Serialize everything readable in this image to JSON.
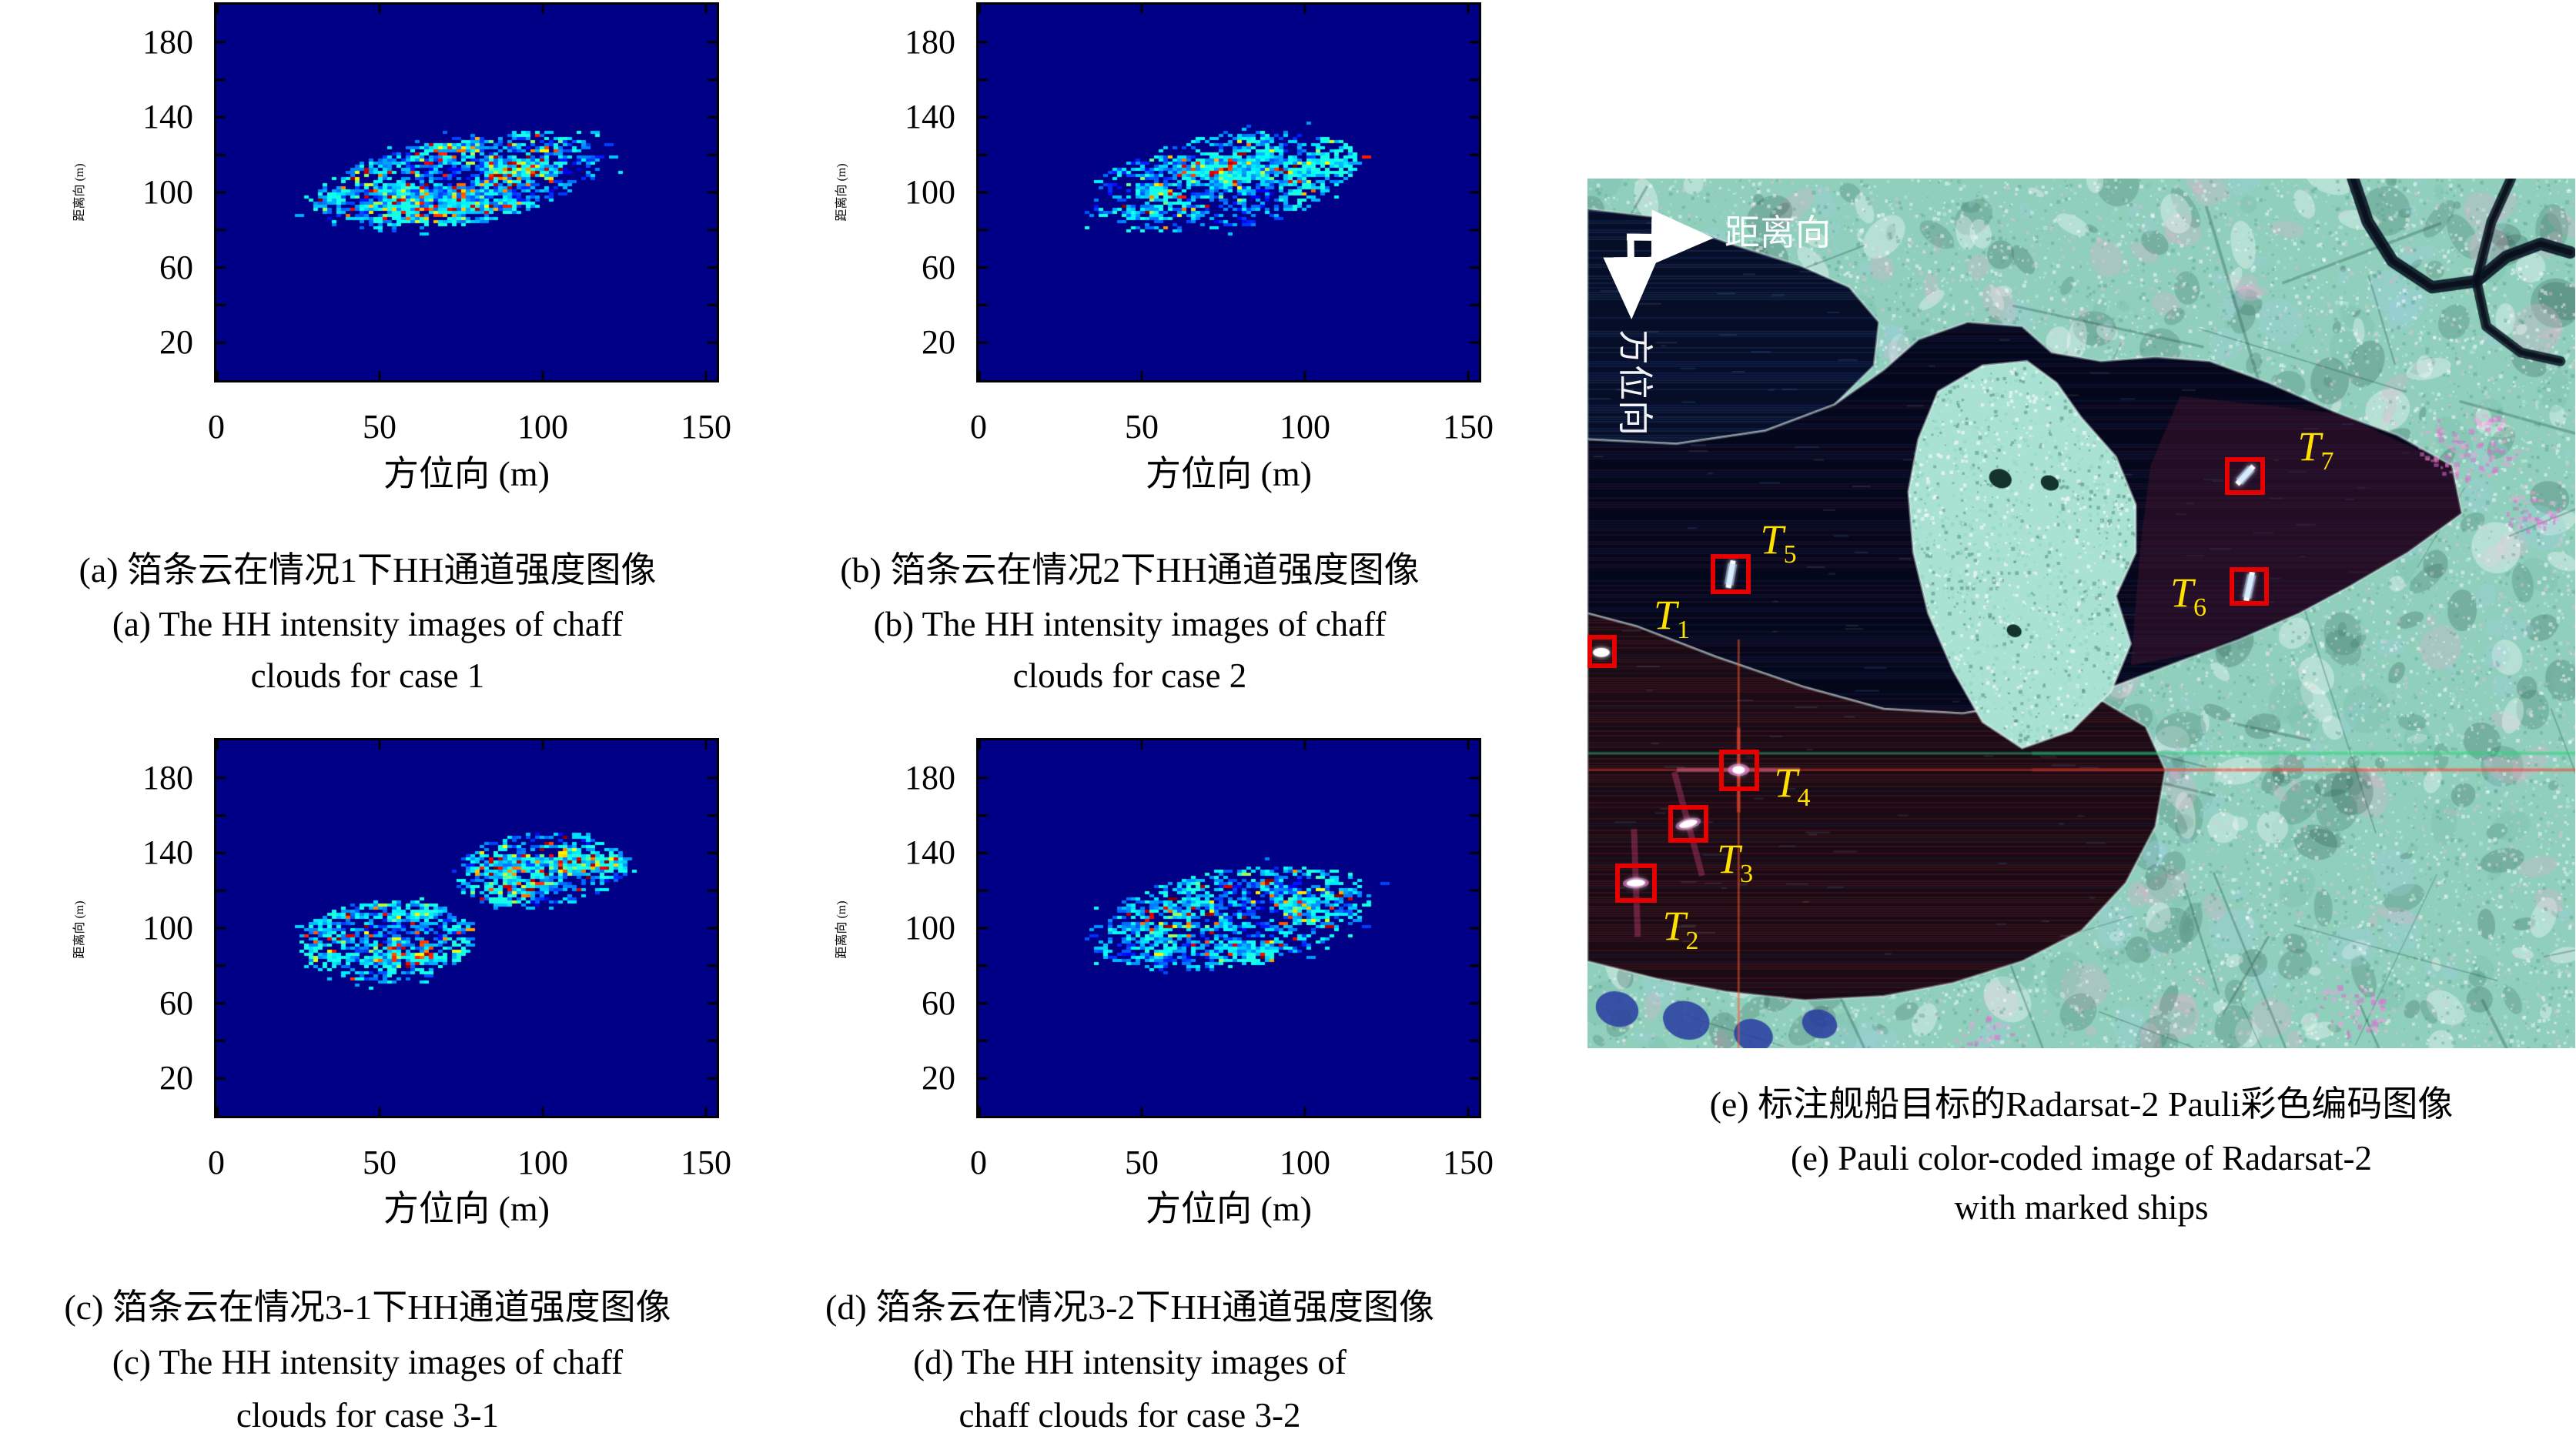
{
  "panels": {
    "a": {
      "caption_zh": "(a) 箔条云在情况1下HH通道强度图像",
      "caption_en1": "(a) The HH intensity images of chaff",
      "caption_en2": "clouds for case 1",
      "xlabel": "方位向 (m)",
      "ylabel": "距离向 (m)"
    },
    "b": {
      "caption_zh": "(b) 箔条云在情况2下HH通道强度图像",
      "caption_en1": "(b) The HH intensity images of chaff",
      "caption_en2": "clouds for case 2",
      "xlabel": "方位向 (m)",
      "ylabel": "距离向 (m)"
    },
    "c": {
      "caption_zh": "(c) 箔条云在情况3-1下HH通道强度图像",
      "caption_en1": "(c) The HH intensity images of chaff",
      "caption_en2": "clouds for case 3-1",
      "xlabel": "方位向 (m)",
      "ylabel": "距离向 (m)"
    },
    "d": {
      "caption_zh": "(d) 箔条云在情况3-2下HH通道强度图像",
      "caption_en1": "(d) The HH intensity images of",
      "caption_en2": "chaff clouds for case 3-2",
      "xlabel": "方位向 (m)",
      "ylabel": "距离向 (m)"
    },
    "e": {
      "caption_zh": "(e) 标注舰船目标的Radarsat-2 Pauli彩色编码图像",
      "caption_en1": "(e) Pauli color-coded image of Radarsat-2",
      "caption_en2": "with marked ships",
      "range_arrow_label": "距离向",
      "azimuth_arrow_label": "方位向"
    }
  },
  "colors": {
    "box": "#e80000",
    "target_label": "#ffe100",
    "heatmap_background": "#000086",
    "axis": "#000000",
    "arrow": "#ffffff"
  },
  "chart_data": [
    {
      "id": "a",
      "type": "heatmap",
      "xlabel": "方位向 (m)",
      "ylabel": "距离向 (m)",
      "xticks": [
        0,
        50,
        100,
        150
      ],
      "yticks": [
        20,
        60,
        100,
        140,
        180
      ],
      "xlim": [
        0,
        153.3
      ],
      "ylim": [
        0,
        200
      ],
      "colormap": "jet",
      "grid": false,
      "background": "#000086",
      "seed": 11,
      "clusters": [
        {
          "cx": 74,
          "cy": 106,
          "rx": 46,
          "ry": 23,
          "angle": 20,
          "density": 0.92,
          "hot": 0.3
        }
      ]
    },
    {
      "id": "b",
      "type": "heatmap",
      "xlabel": "方位向 (m)",
      "ylabel": "距离向 (m)",
      "xticks": [
        0,
        50,
        100,
        150
      ],
      "yticks": [
        20,
        60,
        100,
        140,
        180
      ],
      "xlim": [
        0,
        153.3
      ],
      "ylim": [
        0,
        200
      ],
      "colormap": "jet",
      "grid": false,
      "background": "#000086",
      "seed": 22,
      "clusters": [
        {
          "cx": 75,
          "cy": 106,
          "rx": 43,
          "ry": 24,
          "angle": 21,
          "density": 0.8,
          "hot": 0.14
        }
      ]
    },
    {
      "id": "c",
      "type": "heatmap",
      "xlabel": "方位向 (m)",
      "ylabel": "距离向 (m)",
      "xticks": [
        0,
        50,
        100,
        150
      ],
      "yticks": [
        20,
        60,
        100,
        140,
        180
      ],
      "xlim": [
        0,
        153.3
      ],
      "ylim": [
        0,
        200
      ],
      "colormap": "jet",
      "grid": false,
      "background": "#000086",
      "seed": 33,
      "clusters": [
        {
          "cx": 52,
          "cy": 93,
          "rx": 27,
          "ry": 22,
          "angle": 14,
          "density": 0.92,
          "hot": 0.26
        },
        {
          "cx": 99,
          "cy": 131,
          "rx": 27,
          "ry": 20,
          "angle": 14,
          "density": 0.92,
          "hot": 0.26
        }
      ]
    },
    {
      "id": "d",
      "type": "heatmap",
      "xlabel": "方位向 (m)",
      "ylabel": "距离向 (m)",
      "xticks": [
        0,
        50,
        100,
        150
      ],
      "yticks": [
        20,
        60,
        100,
        140,
        180
      ],
      "xlim": [
        0,
        153.3
      ],
      "ylim": [
        0,
        200
      ],
      "colormap": "jet",
      "grid": false,
      "background": "#000086",
      "seed": 44,
      "clusters": [
        {
          "cx": 77,
          "cy": 105,
          "rx": 45,
          "ry": 25,
          "angle": 20,
          "density": 0.82,
          "hot": 0.2
        }
      ]
    },
    {
      "id": "e",
      "type": "sar_image",
      "seed": 7,
      "arrows": {
        "corner": [
          0.04,
          0.067
        ],
        "range_tip": [
          0.125,
          0.069
        ],
        "azimuth_tip": [
          0.045,
          0.159
        ]
      },
      "targets": [
        {
          "label": "T",
          "sub": "1",
          "box": [
            0.0,
            0.525,
            0.03,
            0.038
          ],
          "label_pos": [
            0.067,
            0.478
          ]
        },
        {
          "label": "T",
          "sub": "2",
          "box": [
            0.028,
            0.788,
            0.042,
            0.045
          ],
          "label_pos": [
            0.076,
            0.835
          ]
        },
        {
          "label": "T",
          "sub": "3",
          "box": [
            0.082,
            0.72,
            0.04,
            0.044
          ],
          "label_pos": [
            0.131,
            0.758
          ]
        },
        {
          "label": "T",
          "sub": "4",
          "box": [
            0.133,
            0.657,
            0.041,
            0.047
          ],
          "label_pos": [
            0.189,
            0.671
          ]
        },
        {
          "label": "T",
          "sub": "5",
          "box": [
            0.125,
            0.432,
            0.04,
            0.046
          ],
          "label_pos": [
            0.175,
            0.391
          ]
        },
        {
          "label": "T",
          "sub": "6",
          "box": [
            0.65,
            0.447,
            0.04,
            0.044
          ],
          "label_pos": [
            0.59,
            0.452
          ]
        },
        {
          "label": "T",
          "sub": "7",
          "box": [
            0.645,
            0.32,
            0.041,
            0.044
          ],
          "label_pos": [
            0.719,
            0.284
          ]
        }
      ],
      "ships": [
        {
          "x": 0.014,
          "y": 0.545,
          "len": 0.01,
          "ang": 0,
          "type": "blob"
        },
        {
          "x": 0.049,
          "y": 0.81,
          "len": 0.026,
          "ang": 88,
          "type": "flareblob"
        },
        {
          "x": 0.102,
          "y": 0.742,
          "len": 0.024,
          "ang": 75,
          "type": "flareblob"
        },
        {
          "x": 0.153,
          "y": 0.68,
          "len": 0.016,
          "ang": 0,
          "type": "crossflare"
        },
        {
          "x": 0.145,
          "y": 0.455,
          "len": 0.032,
          "ang": 10,
          "type": "dash"
        },
        {
          "x": 0.67,
          "y": 0.469,
          "len": 0.034,
          "ang": 12,
          "type": "dash"
        },
        {
          "x": 0.666,
          "y": 0.341,
          "len": 0.028,
          "ang": 42,
          "type": "dash"
        }
      ],
      "flares": [
        {
          "type": "h",
          "y": 0.661,
          "color": "43,216,124",
          "alpha": 0.45
        },
        {
          "type": "h",
          "y": 0.68,
          "color": "255,59,40",
          "alpha": 0.4
        },
        {
          "type": "v",
          "x": 0.153,
          "y0": 0.53,
          "y1": 1.0,
          "color": "255,90,38",
          "alpha": 0.5
        }
      ],
      "regions": [
        {
          "name": "upper_left_water",
          "fill": "#060d26",
          "streaks": [
            "rgba(30,60,140,0.30)",
            "rgba(8,16,52,0.45)",
            "rgba(80,140,200,0.15)"
          ],
          "pts": [
            [
              0,
              0.035
            ],
            [
              0.075,
              0.045
            ],
            [
              0.145,
              0.075
            ],
            [
              0.215,
              0.1
            ],
            [
              0.265,
              0.125
            ],
            [
              0.295,
              0.165
            ],
            [
              0.29,
              0.215
            ],
            [
              0.25,
              0.26
            ],
            [
              0.18,
              0.29
            ],
            [
              0.09,
              0.305
            ],
            [
              0,
              0.3
            ]
          ]
        },
        {
          "name": "main_bay_water",
          "fill": "#05071c",
          "streaks": [
            "rgba(24,36,90,0.28)",
            "rgba(4,6,24,0.50)",
            "rgba(130,50,90,0.14)"
          ],
          "pts": [
            [
              0,
              0.3
            ],
            [
              0.09,
              0.305
            ],
            [
              0.18,
              0.29
            ],
            [
              0.25,
              0.26
            ],
            [
              0.3,
              0.22
            ],
            [
              0.335,
              0.185
            ],
            [
              0.385,
              0.165
            ],
            [
              0.44,
              0.17
            ],
            [
              0.47,
              0.2
            ],
            [
              0.52,
              0.21
            ],
            [
              0.575,
              0.205
            ],
            [
              0.63,
              0.21
            ],
            [
              0.69,
              0.235
            ],
            [
              0.76,
              0.27
            ],
            [
              0.82,
              0.295
            ],
            [
              0.875,
              0.33
            ],
            [
              0.885,
              0.385
            ],
            [
              0.83,
              0.43
            ],
            [
              0.77,
              0.47
            ],
            [
              0.72,
              0.5
            ],
            [
              0.66,
              0.53
            ],
            [
              0.6,
              0.555
            ],
            [
              0.53,
              0.585
            ],
            [
              0.46,
              0.6
            ],
            [
              0.38,
              0.615
            ],
            [
              0.3,
              0.61
            ],
            [
              0.22,
              0.585
            ],
            [
              0.13,
              0.55
            ],
            [
              0.05,
              0.515
            ],
            [
              0,
              0.5
            ]
          ]
        },
        {
          "name": "lower_left_water",
          "fill": "#190a13",
          "streaks": [
            "rgba(120,34,52,0.30)",
            "rgba(40,10,24,0.50)",
            "rgba(34,64,120,0.18)",
            "rgba(160,70,64,0.16)"
          ],
          "pts": [
            [
              0,
              0.5
            ],
            [
              0.05,
              0.515
            ],
            [
              0.13,
              0.55
            ],
            [
              0.22,
              0.585
            ],
            [
              0.3,
              0.61
            ],
            [
              0.38,
              0.615
            ],
            [
              0.46,
              0.6
            ],
            [
              0.52,
              0.6
            ],
            [
              0.565,
              0.63
            ],
            [
              0.585,
              0.68
            ],
            [
              0.575,
              0.745
            ],
            [
              0.545,
              0.81
            ],
            [
              0.5,
              0.865
            ],
            [
              0.44,
              0.9
            ],
            [
              0.37,
              0.925
            ],
            [
              0.3,
              0.94
            ],
            [
              0.22,
              0.945
            ],
            [
              0.14,
              0.935
            ],
            [
              0.07,
              0.92
            ],
            [
              0,
              0.9
            ]
          ]
        },
        {
          "name": "bay_purple_tint",
          "tint": true,
          "fill": "rgba(70,22,48,0.45)",
          "pts": [
            [
              0.6,
              0.25
            ],
            [
              0.76,
              0.27
            ],
            [
              0.875,
              0.33
            ],
            [
              0.885,
              0.385
            ],
            [
              0.83,
              0.43
            ],
            [
              0.72,
              0.5
            ],
            [
              0.62,
              0.545
            ],
            [
              0.55,
              0.56
            ],
            [
              0.56,
              0.42
            ],
            [
              0.57,
              0.33
            ]
          ]
        },
        {
          "name": "island_land",
          "land": true,
          "fill": "#a9e2d2",
          "pts": [
            [
              0.355,
              0.245
            ],
            [
              0.4,
              0.215
            ],
            [
              0.445,
              0.21
            ],
            [
              0.475,
              0.235
            ],
            [
              0.5,
              0.275
            ],
            [
              0.535,
              0.32
            ],
            [
              0.555,
              0.375
            ],
            [
              0.555,
              0.43
            ],
            [
              0.535,
              0.48
            ],
            [
              0.55,
              0.535
            ],
            [
              0.53,
              0.59
            ],
            [
              0.49,
              0.635
            ],
            [
              0.44,
              0.655
            ],
            [
              0.4,
              0.625
            ],
            [
              0.37,
              0.565
            ],
            [
              0.345,
              0.5
            ],
            [
              0.33,
              0.43
            ],
            [
              0.325,
              0.36
            ],
            [
              0.335,
              0.3
            ]
          ]
        }
      ],
      "river": [
        [
          0.775,
          0
        ],
        [
          0.79,
          0.05
        ],
        [
          0.815,
          0.095
        ],
        [
          0.855,
          0.125
        ],
        [
          0.9,
          0.118
        ],
        [
          0.93,
          0.09
        ],
        [
          0.965,
          0.075
        ],
        [
          0.995,
          0.085
        ]
      ],
      "river2": [
        [
          0.935,
          0.0
        ],
        [
          0.915,
          0.05
        ],
        [
          0.9,
          0.118
        ],
        [
          0.91,
          0.17
        ],
        [
          0.945,
          0.2
        ],
        [
          0.985,
          0.21
        ]
      ],
      "magenta": [
        {
          "x": 0.89,
          "y": 0.305,
          "r": 0.05,
          "n": 90
        },
        {
          "x": 0.952,
          "y": 0.38,
          "r": 0.03,
          "n": 40
        },
        {
          "x": 0.77,
          "y": 0.955,
          "r": 0.04,
          "n": 50
        },
        {
          "x": 0.4,
          "y": 0.985,
          "r": 0.03,
          "n": 30
        }
      ],
      "blue_blobs": [
        {
          "x": 0.03,
          "y": 0.955,
          "r": 0.022
        },
        {
          "x": 0.1,
          "y": 0.968,
          "r": 0.024
        },
        {
          "x": 0.168,
          "y": 0.985,
          "r": 0.02
        },
        {
          "x": 0.235,
          "y": 0.972,
          "r": 0.018
        }
      ]
    }
  ]
}
